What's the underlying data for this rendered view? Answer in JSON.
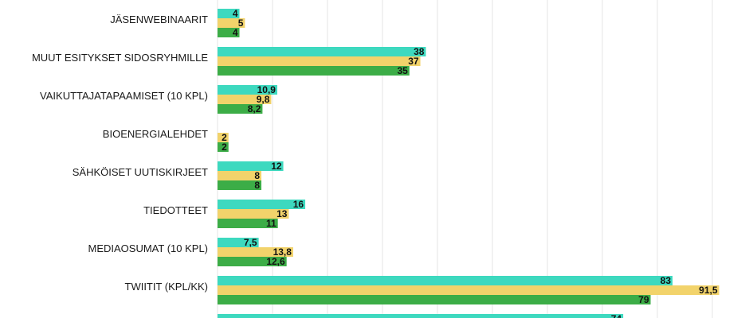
{
  "chart_data": {
    "type": "bar",
    "orientation": "horizontal",
    "categories": [
      "JÄSENWEBINAARIT",
      "MUUT ESITYKSET SIDOSRYHMILLE",
      "VAIKUTTAJATAPAAMISET (10 KPL)",
      "BIOENERGIALEHDET",
      "SÄHKÖISET UUTISKIRJEET",
      "TIEDOTTEET",
      "MEDIAOSUMAT (10 KPL)",
      "TWIITIT (KPL/KK)",
      ""
    ],
    "series": [
      {
        "color": "#3dd9bf",
        "values": [
          4,
          38,
          10.9,
          null,
          12,
          16,
          7.5,
          83,
          74
        ],
        "labels": [
          "4",
          "38",
          "10,9",
          "",
          "12",
          "16",
          "7,5",
          "83",
          "74"
        ]
      },
      {
        "color": "#f2d36b",
        "values": [
          5,
          37,
          9.8,
          2,
          8,
          13,
          13.8,
          91.5,
          null
        ],
        "labels": [
          "5",
          "37",
          "9,8",
          "2",
          "8",
          "13",
          "13,8",
          "91,5",
          ""
        ]
      },
      {
        "color": "#3cad47",
        "values": [
          4,
          35,
          8.2,
          2,
          8,
          11,
          12.6,
          79,
          null
        ],
        "labels": [
          "4",
          "35",
          "8,2",
          "2",
          "8",
          "11",
          "12,6",
          "79",
          ""
        ]
      }
    ],
    "xlim": [
      0,
      95
    ],
    "grid": true,
    "gridline_color": "#e4e4e4"
  }
}
